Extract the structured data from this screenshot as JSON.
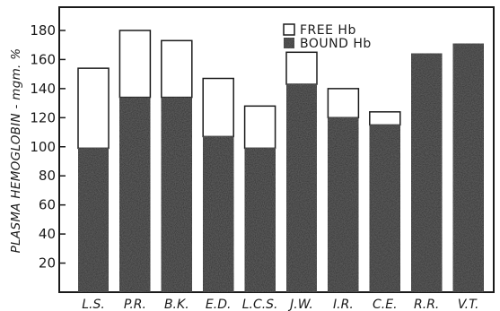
{
  "chart_data": {
    "type": "bar",
    "stacked": true,
    "categories": [
      "L.S.",
      "P.R.",
      "B.K.",
      "E.D.",
      "L.C.S.",
      "J.W.",
      "I.R.",
      "C.E.",
      "R.R.",
      "V.T."
    ],
    "series": [
      {
        "name": "BOUND Hb",
        "values": [
          99,
          134,
          134,
          107,
          99,
          143,
          120,
          115,
          164,
          171
        ],
        "color": "#2b2b2b"
      },
      {
        "name": "FREE Hb",
        "values": [
          55,
          46,
          39,
          40,
          29,
          22,
          20,
          9,
          0,
          0
        ],
        "color": "#ffffff"
      }
    ],
    "totals": [
      154,
      180,
      173,
      147,
      128,
      165,
      140,
      124,
      164,
      171
    ],
    "title": "",
    "xlabel": "",
    "ylabel": "PLASMA HEMOGLOBIN - mgm. %",
    "ylim": [
      0,
      196
    ],
    "yticks": [
      20,
      40,
      60,
      80,
      100,
      120,
      140,
      160,
      180
    ],
    "grid": false,
    "legend_position": "top-center"
  }
}
